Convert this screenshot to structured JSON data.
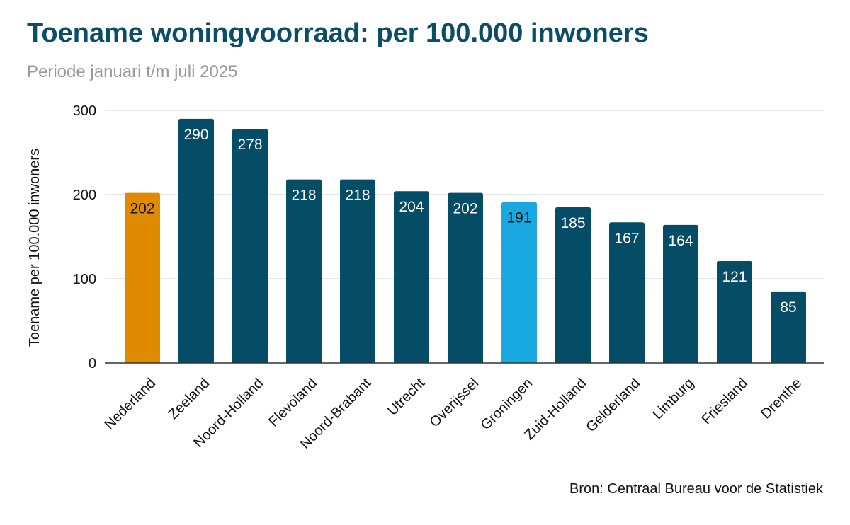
{
  "chart_data": {
    "type": "bar",
    "title": "Toename woningvoorraad: per 100.000 inwoners",
    "subtitle": "Periode januari t/m juli 2025",
    "ylabel": "Toename per 100.000 inwoners",
    "xlabel": "",
    "source": "Bron: Centraal Bureau voor de Statistiek",
    "categories": [
      "Nederland",
      "Zeeland",
      "Noord-Holland",
      "Flevoland",
      "Noord-Brabant",
      "Utrecht",
      "Overijssel",
      "Groningen",
      "Zuid-Holland",
      "Gelderland",
      "Limburg",
      "Friesland",
      "Drenthe"
    ],
    "values": [
      202,
      290,
      278,
      218,
      218,
      204,
      202,
      191,
      185,
      167,
      164,
      121,
      85
    ],
    "ylim": [
      0,
      300
    ],
    "yticks": [
      0,
      100,
      200,
      300
    ],
    "grid": true,
    "legend": "none",
    "colors": {
      "default": "#054d67",
      "Nederland": "#e08a00",
      "Groningen": "#19a8df"
    },
    "label_colors": {
      "default": "#ffffff",
      "Nederland": "#111111",
      "Groningen": "#111111"
    }
  }
}
